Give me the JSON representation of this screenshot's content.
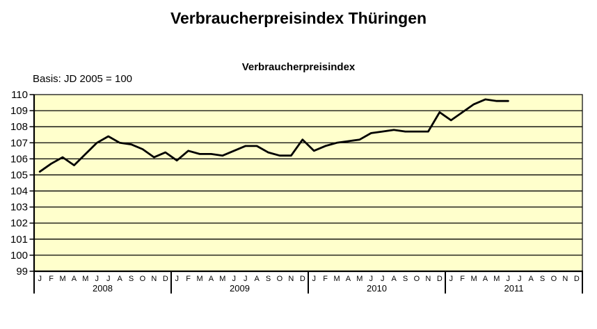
{
  "header": {
    "title": "Verbraucherpreisindex Thüringen"
  },
  "chart_data": {
    "type": "line",
    "title": "Verbraucherpreisindex",
    "basis_note": "Basis: JD 2005 = 100",
    "ylim": [
      99,
      110
    ],
    "yticks": [
      99,
      100,
      101,
      102,
      103,
      104,
      105,
      106,
      107,
      108,
      109,
      110
    ],
    "grid": true,
    "legend": "none",
    "plot_bg": "#FFFFCC",
    "line_color": "#000000",
    "axis_color": "#000000",
    "month_labels": [
      "J",
      "F",
      "M",
      "A",
      "M",
      "J",
      "J",
      "A",
      "S",
      "O",
      "N",
      "D"
    ],
    "years": [
      "2008",
      "2009",
      "2010",
      "2011"
    ],
    "series": [
      {
        "name": "Verbraucherpreisindex Thüringen",
        "values": [
          105.2,
          105.7,
          106.1,
          105.6,
          106.3,
          107.0,
          107.4,
          107.0,
          106.9,
          106.6,
          106.1,
          106.4,
          105.9,
          106.5,
          106.3,
          106.3,
          106.2,
          106.5,
          106.8,
          106.8,
          106.4,
          106.2,
          106.2,
          107.2,
          106.5,
          106.8,
          107.0,
          107.1,
          107.2,
          107.6,
          107.7,
          107.8,
          107.7,
          107.7,
          107.7,
          108.9,
          108.4,
          108.9,
          109.4,
          109.7,
          109.6,
          109.6,
          null,
          null,
          null,
          null,
          null,
          null
        ]
      }
    ]
  }
}
